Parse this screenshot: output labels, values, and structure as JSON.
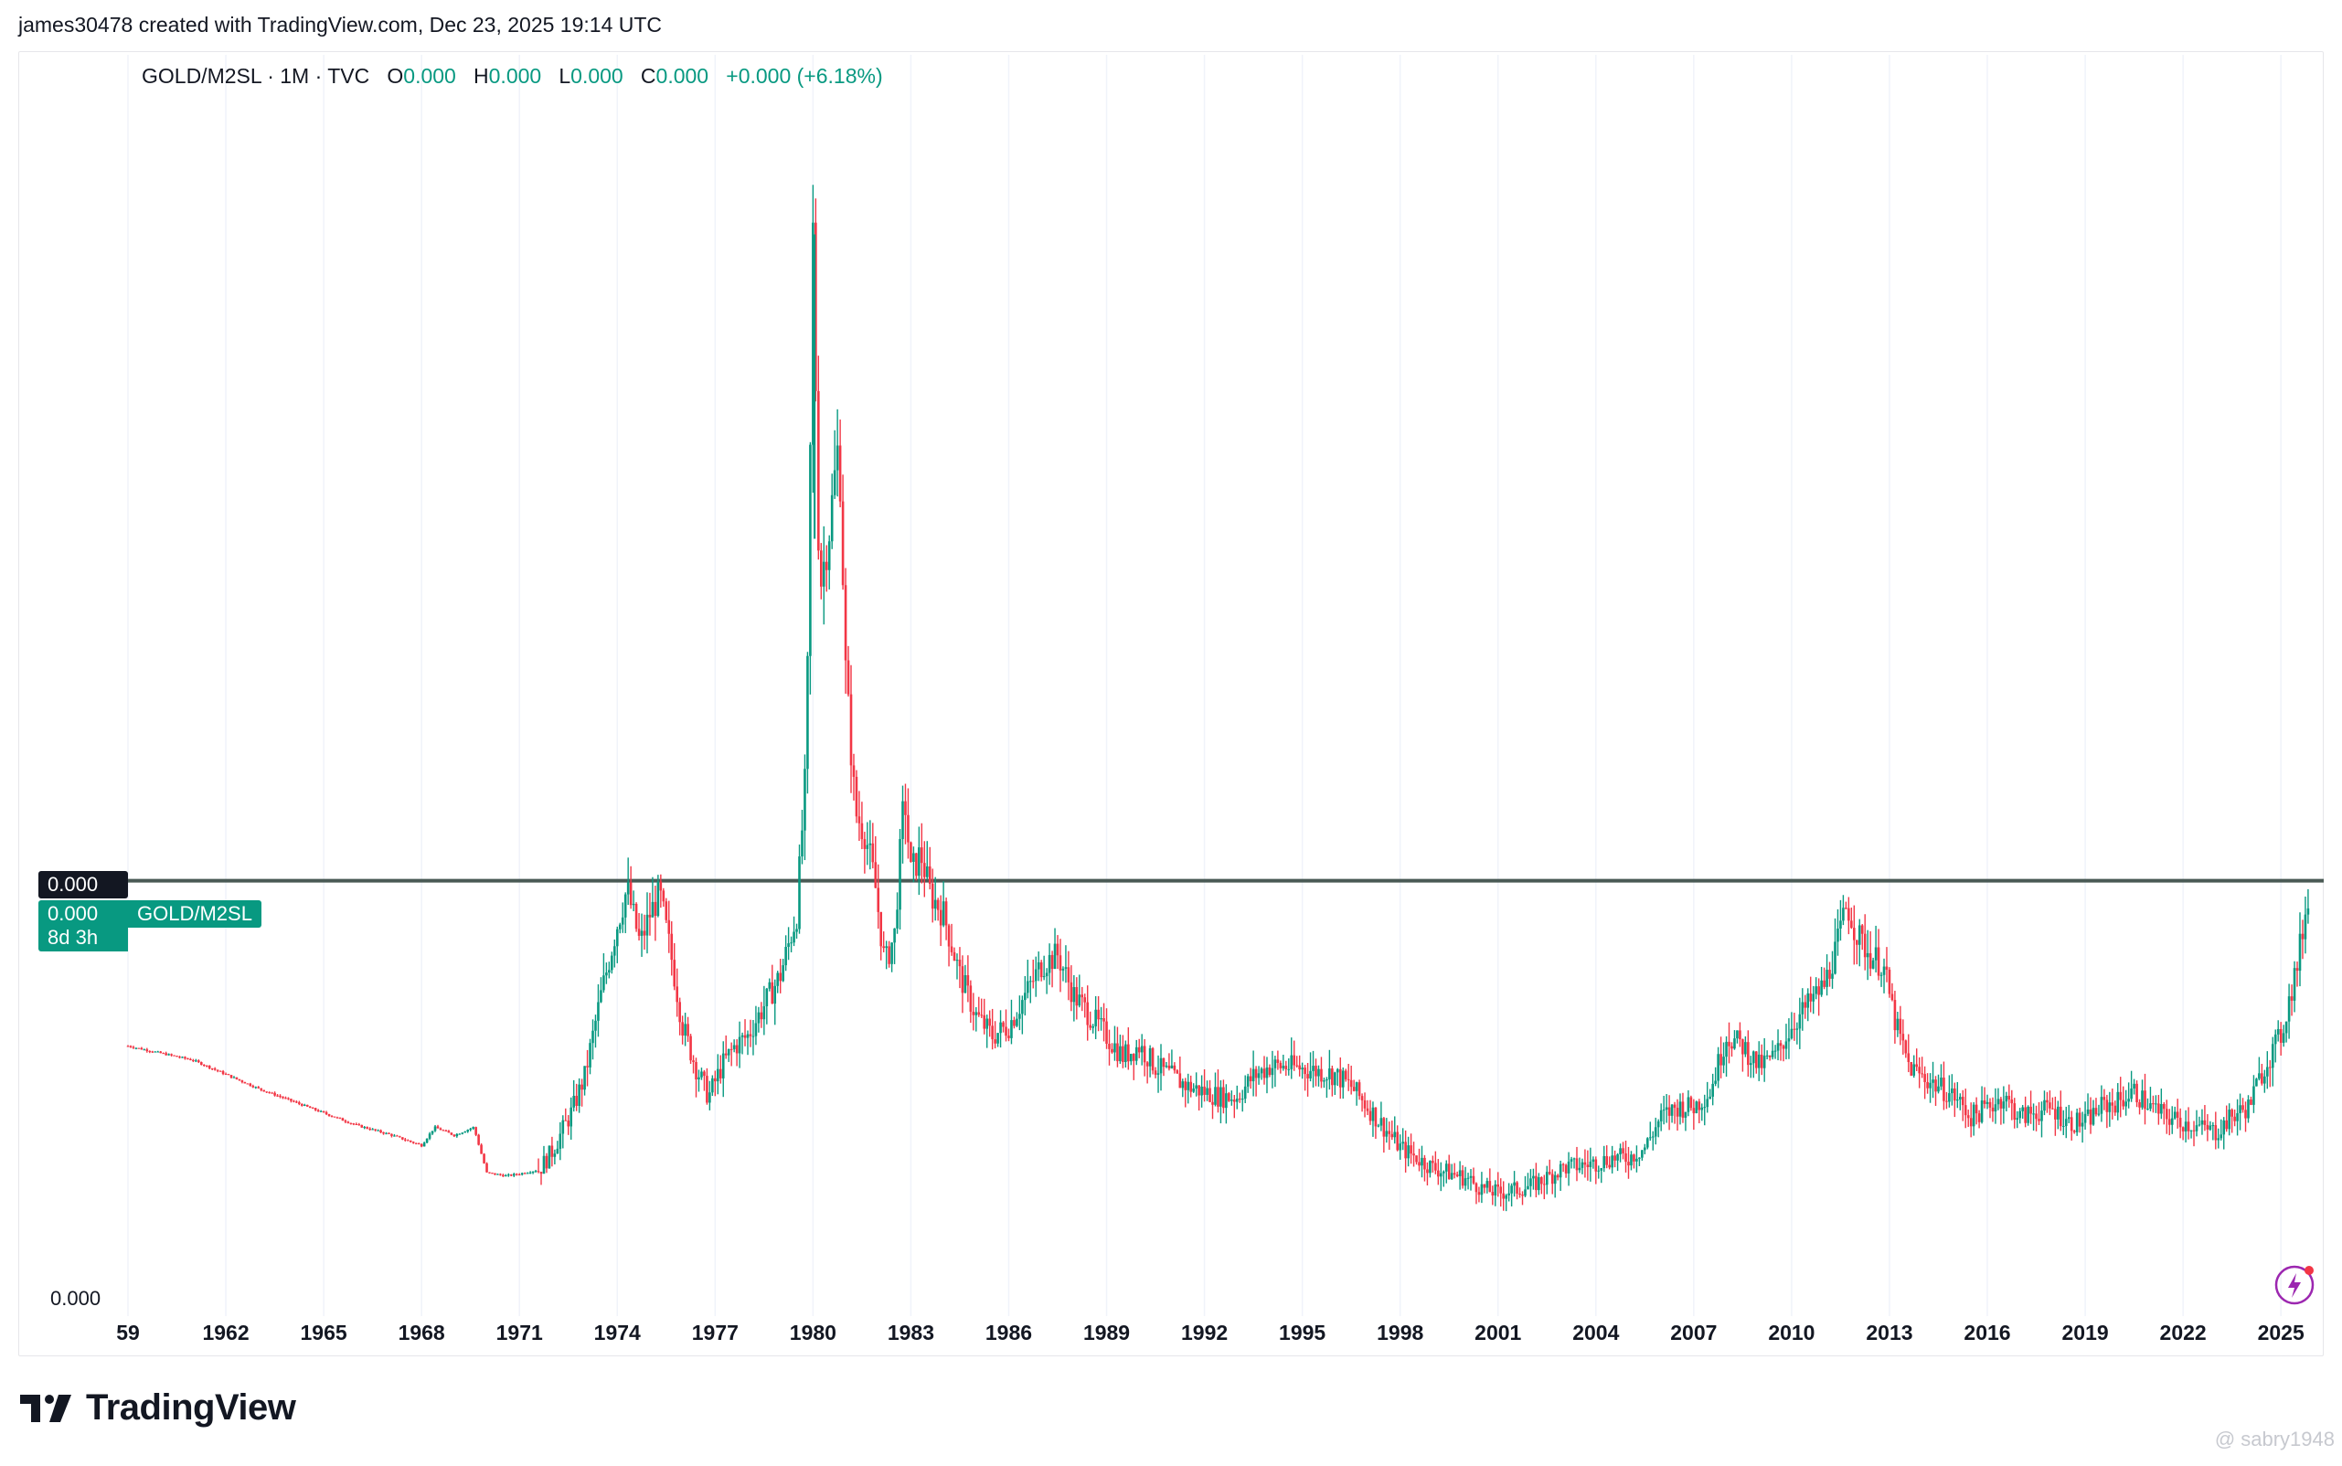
{
  "header": {
    "credit": "james30478 created with TradingView.com, Dec 23, 2025 19:14 UTC"
  },
  "legend": {
    "symbol": "GOLD/M2SL · 1M · TVC",
    "o_label": "O",
    "o_value": "0.000",
    "h_label": "H",
    "h_value": "0.000",
    "l_label": "L",
    "l_value": "0.000",
    "c_label": "C",
    "c_value": "0.000",
    "change": "+0.000 (+6.18%)"
  },
  "price_tags": {
    "crosshair_value": "0.000",
    "last_value": "0.000",
    "countdown": "8d 3h",
    "series_label": "GOLD/M2SL"
  },
  "axis": {
    "bottom_price_label": "0.000"
  },
  "branding": {
    "logo_text": "TradingView",
    "watermark": "@ sabry1948"
  },
  "colors": {
    "up": "#089981",
    "down": "#f23645",
    "level_line": "#4a5a55",
    "grid": "#f0f3fa"
  },
  "icons": {
    "logo": "tradingview-logo-icon",
    "bolt": "lightning-bolt-icon"
  },
  "chart_data": {
    "type": "candlestick",
    "interval": "1M",
    "x_ticks": [
      "59",
      "1962",
      "1965",
      "1968",
      "1971",
      "1974",
      "1977",
      "1980",
      "1983",
      "1986",
      "1989",
      "1992",
      "1995",
      "1998",
      "2001",
      "2004",
      "2007",
      "2010",
      "2013",
      "2016",
      "2019",
      "2022",
      "2025"
    ],
    "x_tick_years": [
      1959,
      1962,
      1965,
      1968,
      1971,
      1974,
      1977,
      1980,
      1983,
      1986,
      1989,
      1992,
      1995,
      1998,
      2001,
      2004,
      2007,
      2010,
      2013,
      2016,
      2019,
      2022,
      2025
    ],
    "x_range": [
      1959,
      2026.2
    ],
    "y_range": [
      0,
      1.2
    ],
    "horizontal_level": 0.413,
    "grid": true,
    "series": [
      {
        "name": "GOLD/M2SL",
        "points": [
          [
            1959.0,
            0.25
          ],
          [
            1960.0,
            0.243
          ],
          [
            1961.0,
            0.236
          ],
          [
            1962.0,
            0.222
          ],
          [
            1963.0,
            0.208
          ],
          [
            1964.0,
            0.196
          ],
          [
            1965.0,
            0.184
          ],
          [
            1966.0,
            0.172
          ],
          [
            1967.0,
            0.163
          ],
          [
            1968.0,
            0.152
          ],
          [
            1968.4,
            0.17
          ],
          [
            1969.0,
            0.162
          ],
          [
            1969.6,
            0.17
          ],
          [
            1970.0,
            0.125
          ],
          [
            1970.6,
            0.122
          ],
          [
            1971.0,
            0.124
          ],
          [
            1971.6,
            0.128
          ],
          [
            1972.0,
            0.146
          ],
          [
            1972.6,
            0.185
          ],
          [
            1973.0,
            0.22
          ],
          [
            1973.5,
            0.3
          ],
          [
            1974.0,
            0.37
          ],
          [
            1974.3,
            0.405
          ],
          [
            1974.7,
            0.35
          ],
          [
            1975.0,
            0.38
          ],
          [
            1975.3,
            0.4
          ],
          [
            1975.7,
            0.33
          ],
          [
            1976.0,
            0.27
          ],
          [
            1976.4,
            0.23
          ],
          [
            1976.8,
            0.2
          ],
          [
            1977.2,
            0.23
          ],
          [
            1977.6,
            0.25
          ],
          [
            1978.0,
            0.26
          ],
          [
            1978.5,
            0.29
          ],
          [
            1979.0,
            0.32
          ],
          [
            1979.5,
            0.38
          ],
          [
            1979.8,
            0.53
          ],
          [
            1980.0,
            1.05
          ],
          [
            1980.2,
            0.7
          ],
          [
            1980.5,
            0.76
          ],
          [
            1980.8,
            0.85
          ],
          [
            1981.0,
            0.62
          ],
          [
            1981.3,
            0.48
          ],
          [
            1981.6,
            0.46
          ],
          [
            1981.9,
            0.41
          ],
          [
            1982.2,
            0.33
          ],
          [
            1982.5,
            0.36
          ],
          [
            1982.8,
            0.5
          ],
          [
            1983.0,
            0.42
          ],
          [
            1983.3,
            0.44
          ],
          [
            1983.6,
            0.4
          ],
          [
            1984.0,
            0.38
          ],
          [
            1984.5,
            0.32
          ],
          [
            1985.0,
            0.28
          ],
          [
            1985.5,
            0.26
          ],
          [
            1986.0,
            0.27
          ],
          [
            1986.5,
            0.3
          ],
          [
            1987.0,
            0.33
          ],
          [
            1987.5,
            0.34
          ],
          [
            1988.0,
            0.3
          ],
          [
            1988.5,
            0.28
          ],
          [
            1989.0,
            0.26
          ],
          [
            1989.5,
            0.24
          ],
          [
            1990.0,
            0.25
          ],
          [
            1990.5,
            0.23
          ],
          [
            1991.0,
            0.22
          ],
          [
            1991.5,
            0.21
          ],
          [
            1992.0,
            0.205
          ],
          [
            1992.5,
            0.2
          ],
          [
            1993.0,
            0.2
          ],
          [
            1993.5,
            0.22
          ],
          [
            1994.0,
            0.23
          ],
          [
            1994.5,
            0.23
          ],
          [
            1995.0,
            0.228
          ],
          [
            1995.5,
            0.225
          ],
          [
            1996.0,
            0.222
          ],
          [
            1996.5,
            0.21
          ],
          [
            1997.0,
            0.19
          ],
          [
            1997.5,
            0.17
          ],
          [
            1998.0,
            0.15
          ],
          [
            1998.5,
            0.14
          ],
          [
            1999.0,
            0.13
          ],
          [
            1999.5,
            0.125
          ],
          [
            2000.0,
            0.12
          ],
          [
            2000.5,
            0.11
          ],
          [
            2001.0,
            0.105
          ],
          [
            2001.5,
            0.108
          ],
          [
            2002.0,
            0.112
          ],
          [
            2002.5,
            0.12
          ],
          [
            2003.0,
            0.13
          ],
          [
            2003.5,
            0.132
          ],
          [
            2004.0,
            0.135
          ],
          [
            2004.5,
            0.14
          ],
          [
            2005.0,
            0.14
          ],
          [
            2005.5,
            0.15
          ],
          [
            2006.0,
            0.18
          ],
          [
            2006.5,
            0.19
          ],
          [
            2007.0,
            0.19
          ],
          [
            2007.5,
            0.205
          ],
          [
            2008.0,
            0.26
          ],
          [
            2008.5,
            0.25
          ],
          [
            2009.0,
            0.23
          ],
          [
            2009.5,
            0.24
          ],
          [
            2010.0,
            0.27
          ],
          [
            2010.5,
            0.29
          ],
          [
            2011.0,
            0.31
          ],
          [
            2011.4,
            0.35
          ],
          [
            2011.7,
            0.39
          ],
          [
            2012.0,
            0.36
          ],
          [
            2012.4,
            0.34
          ],
          [
            2012.8,
            0.33
          ],
          [
            2013.2,
            0.27
          ],
          [
            2013.6,
            0.23
          ],
          [
            2014.0,
            0.22
          ],
          [
            2014.5,
            0.21
          ],
          [
            2015.0,
            0.2
          ],
          [
            2015.5,
            0.18
          ],
          [
            2016.0,
            0.19
          ],
          [
            2016.5,
            0.2
          ],
          [
            2017.0,
            0.18
          ],
          [
            2017.5,
            0.185
          ],
          [
            2018.0,
            0.188
          ],
          [
            2018.5,
            0.175
          ],
          [
            2019.0,
            0.175
          ],
          [
            2019.5,
            0.19
          ],
          [
            2020.0,
            0.195
          ],
          [
            2020.5,
            0.205
          ],
          [
            2021.0,
            0.19
          ],
          [
            2021.5,
            0.18
          ],
          [
            2022.0,
            0.175
          ],
          [
            2022.5,
            0.17
          ],
          [
            2023.0,
            0.165
          ],
          [
            2023.5,
            0.18
          ],
          [
            2024.0,
            0.19
          ],
          [
            2024.5,
            0.23
          ],
          [
            2025.0,
            0.26
          ],
          [
            2025.5,
            0.33
          ],
          [
            2025.9,
            0.413
          ]
        ]
      }
    ]
  }
}
